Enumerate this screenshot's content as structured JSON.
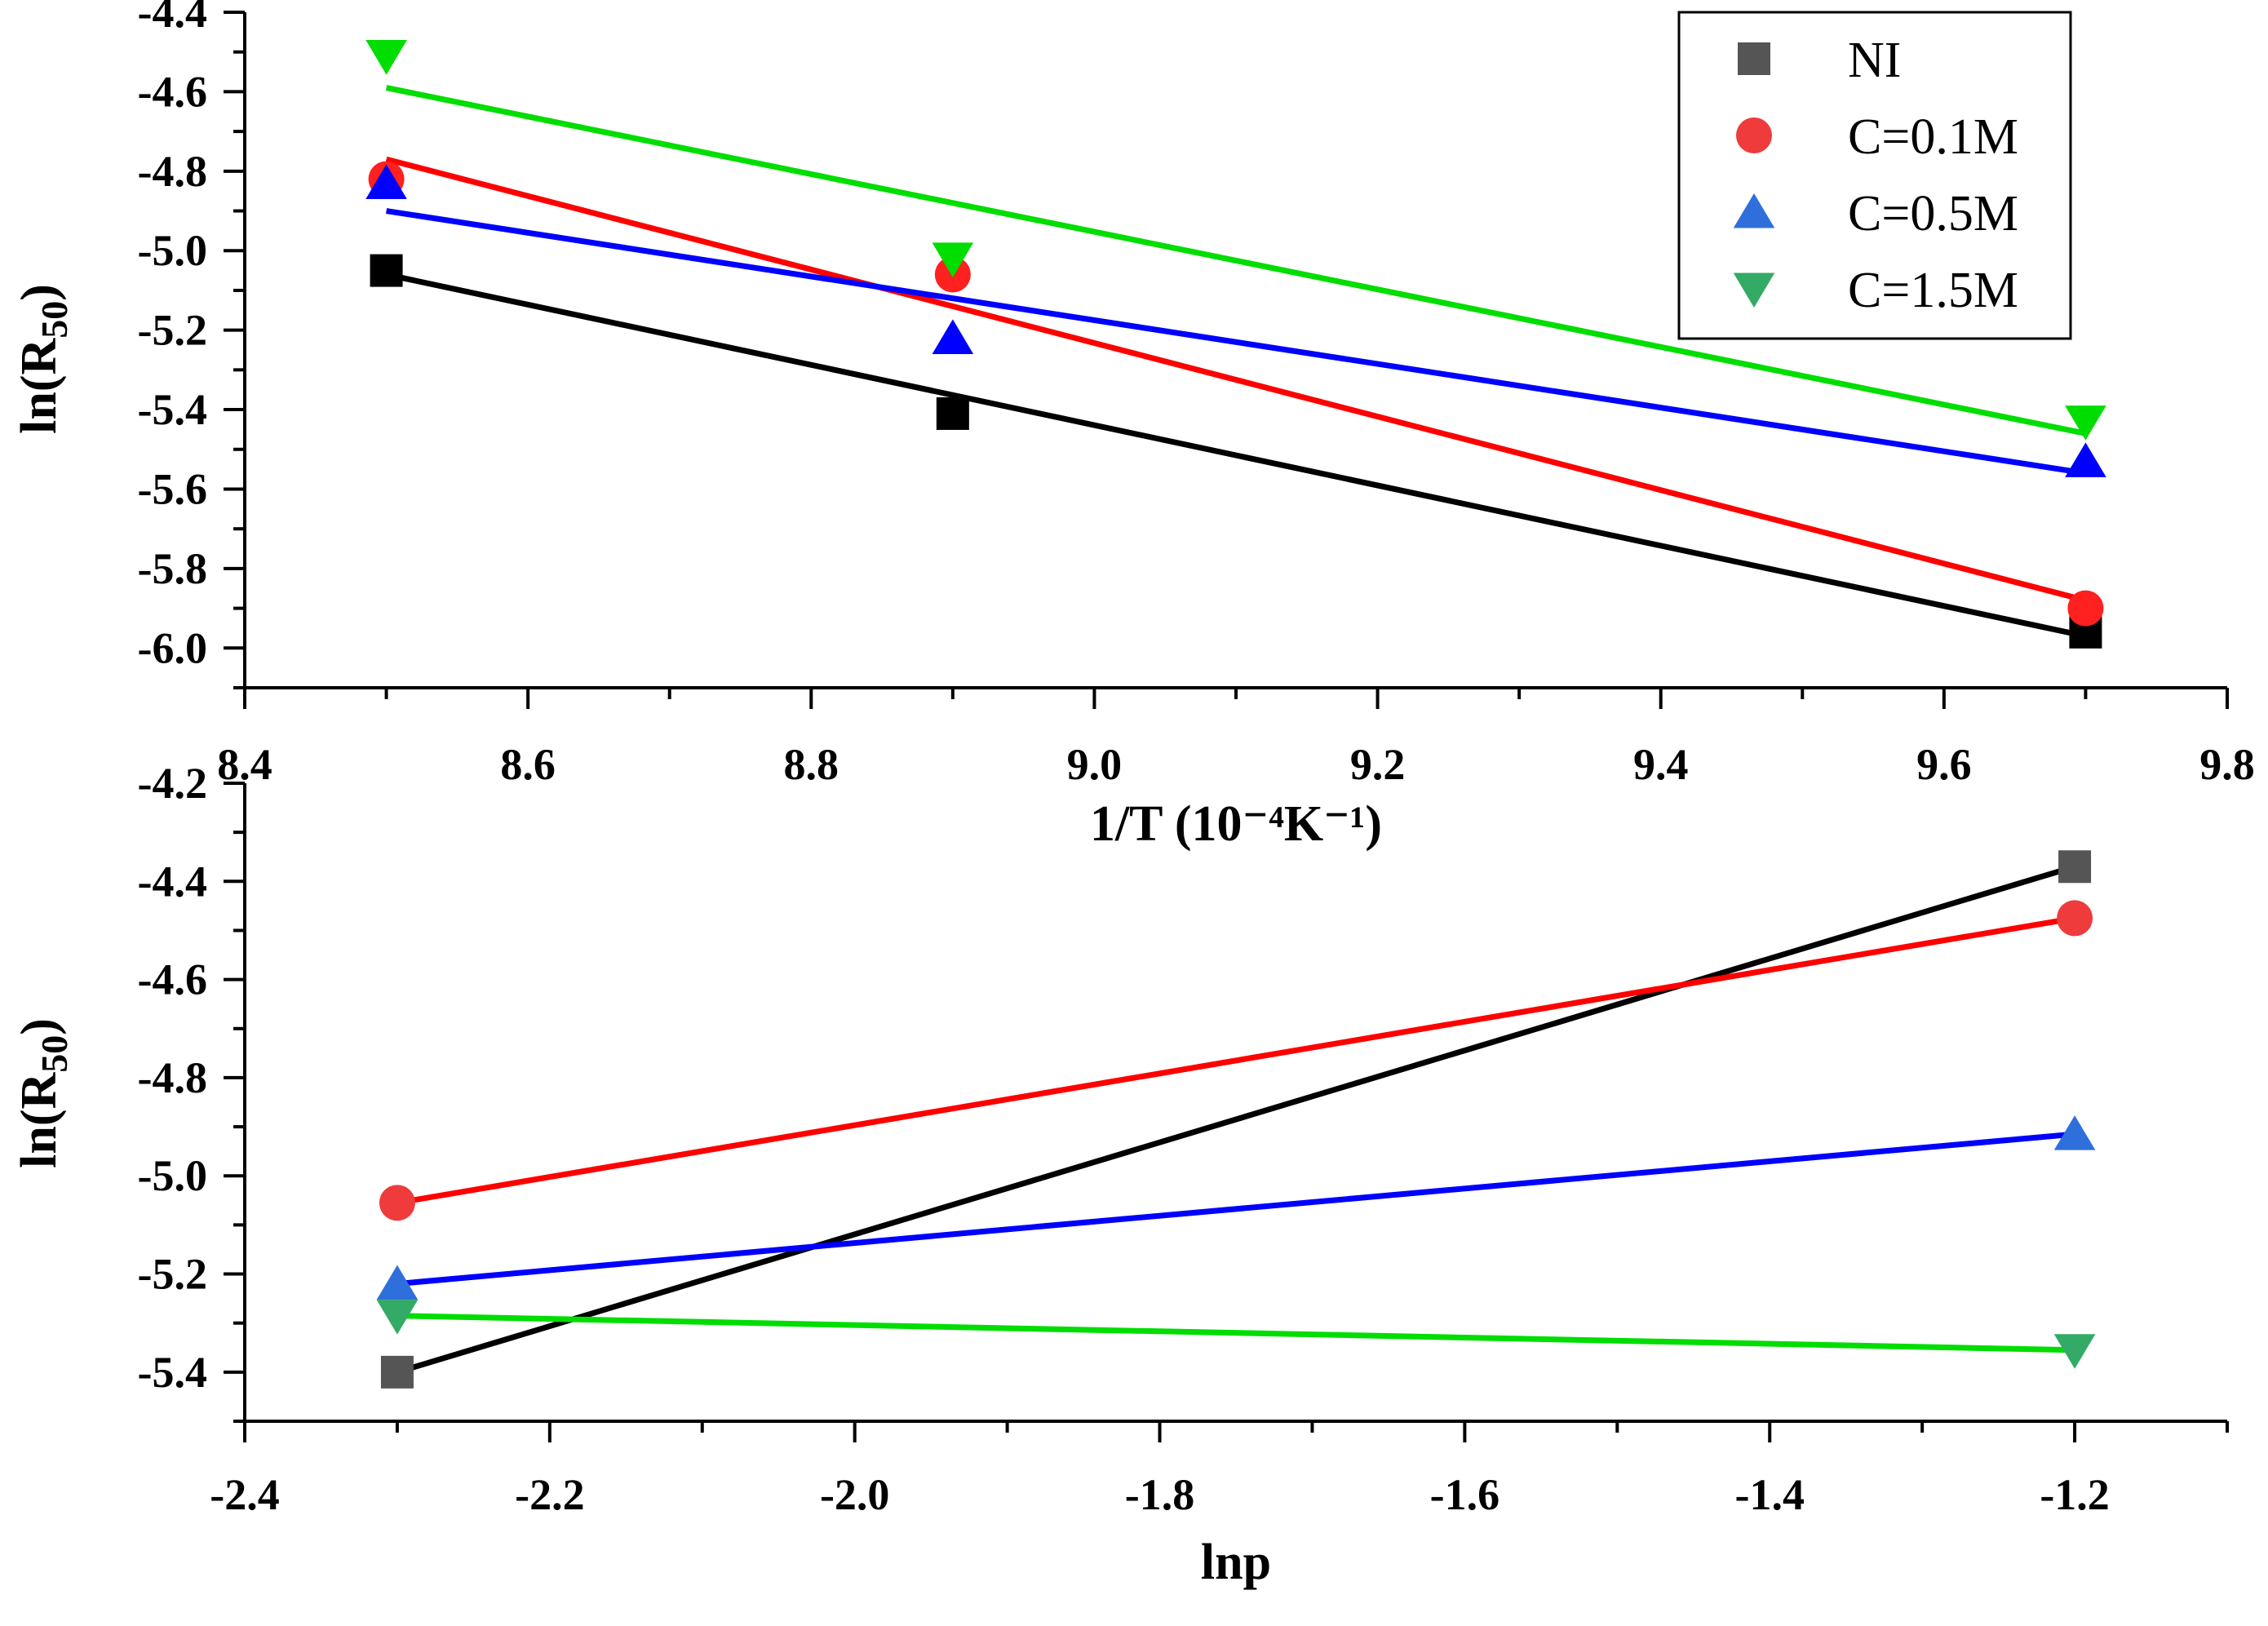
{
  "chart_data": [
    {
      "type": "scatter",
      "xlabel": "1/T (10⁻⁴K⁻¹)",
      "ylabel_main": "ln(R",
      "ylabel_sub": "50",
      "ylabel_close": ")",
      "xlim": [
        8.4,
        9.8
      ],
      "ylim": [
        -6.1,
        -4.4
      ],
      "x_ticks": [
        8.4,
        8.6,
        8.8,
        9.0,
        9.2,
        9.4,
        9.6,
        9.8
      ],
      "x_tick_labels": [
        "8.4",
        "8.6",
        "8.8",
        "9.0",
        "9.2",
        "9.4",
        "9.6",
        "9.8"
      ],
      "y_ticks": [
        -4.4,
        -4.6,
        -4.8,
        -5.0,
        -5.2,
        -5.4,
        -5.6,
        -5.8,
        -6.0
      ],
      "y_tick_labels": [
        "-4.4",
        "-4.6",
        "-4.8",
        "-5.0",
        "-5.2",
        "-5.4",
        "-5.6",
        "-5.8",
        "-6.0"
      ],
      "legend": {
        "position": "top-right",
        "entries": [
          {
            "label": "NI",
            "marker": "square",
            "color": "#555555"
          },
          {
            "label": "C=0.1M",
            "marker": "circle",
            "color": "#ef3b3b"
          },
          {
            "label": "C=0.5M",
            "marker": "triangle-up",
            "color": "#2f6fdc"
          },
          {
            "label": "C=1.5M",
            "marker": "triangle-down",
            "color": "#33aa66"
          }
        ]
      },
      "series": [
        {
          "name": "NI",
          "marker": "square",
          "marker_color": "#000000",
          "line_color": "#000000",
          "x": [
            8.5,
            8.9,
            9.7
          ],
          "y": [
            -5.05,
            -5.41,
            -5.96
          ],
          "fit": {
            "x": [
              8.5,
              9.7
            ],
            "y": [
              -5.06,
              -5.97
            ]
          }
        },
        {
          "name": "C=0.1M",
          "marker": "circle",
          "marker_color": "#ff2020",
          "line_color": "#ff0000",
          "x": [
            8.5,
            8.9,
            9.7
          ],
          "y": [
            -4.82,
            -5.06,
            -5.9
          ],
          "fit": {
            "x": [
              8.5,
              9.7
            ],
            "y": [
              -4.77,
              -5.88
            ]
          }
        },
        {
          "name": "C=0.5M",
          "marker": "triangle-up",
          "marker_color": "#0000ff",
          "line_color": "#0000ff",
          "x": [
            8.5,
            8.9,
            9.7
          ],
          "y": [
            -4.83,
            -5.22,
            -5.53
          ],
          "fit": {
            "x": [
              8.5,
              9.7
            ],
            "y": [
              -4.9,
              -5.56
            ]
          }
        },
        {
          "name": "C=1.5M",
          "marker": "triangle-down",
          "marker_color": "#00dd00",
          "line_color": "#00dd00",
          "x": [
            8.5,
            8.9,
            9.7
          ],
          "y": [
            -4.51,
            -5.02,
            -5.43
          ],
          "fit": {
            "x": [
              8.5,
              9.7
            ],
            "y": [
              -4.59,
              -5.46
            ]
          }
        }
      ]
    },
    {
      "type": "scatter",
      "xlabel": "lnp",
      "ylabel_main": "ln(R",
      "ylabel_sub": "50",
      "ylabel_close": ")",
      "xlim": [
        -2.4,
        -1.1
      ],
      "ylim": [
        -5.5,
        -4.2
      ],
      "x_ticks": [
        -2.4,
        -2.2,
        -2.0,
        -1.8,
        -1.6,
        -1.4,
        -1.2
      ],
      "x_tick_labels": [
        "-2.4",
        "-2.2",
        "-2.0",
        "-1.8",
        "-1.6",
        "-1.4",
        "-1.2"
      ],
      "y_ticks": [
        -4.2,
        -4.4,
        -4.6,
        -4.8,
        -5.0,
        -5.2,
        -5.4
      ],
      "y_tick_labels": [
        "-4.2",
        "-4.4",
        "-4.6",
        "-4.8",
        "-5.0",
        "-5.2",
        "-5.4"
      ],
      "series": [
        {
          "name": "NI",
          "marker": "square",
          "marker_color": "#555555",
          "line_color": "#000000",
          "x": [
            -2.3,
            -1.2
          ],
          "y": [
            -5.4,
            -4.37
          ],
          "fit": {
            "x": [
              -2.3,
              -1.2
            ],
            "y": [
              -5.4,
              -4.37
            ]
          }
        },
        {
          "name": "C=0.1M",
          "marker": "circle",
          "marker_color": "#ef3b3b",
          "line_color": "#ff0000",
          "x": [
            -2.3,
            -1.2
          ],
          "y": [
            -5.055,
            -4.475
          ],
          "fit": {
            "x": [
              -2.3,
              -1.2
            ],
            "y": [
              -5.055,
              -4.475
            ]
          }
        },
        {
          "name": "C=0.5M",
          "marker": "triangle-up",
          "marker_color": "#2f6fdc",
          "line_color": "#0000ff",
          "x": [
            -2.3,
            -1.2
          ],
          "y": [
            -5.22,
            -4.915
          ],
          "fit": {
            "x": [
              -2.3,
              -1.2
            ],
            "y": [
              -5.22,
              -4.915
            ]
          }
        },
        {
          "name": "C=1.5M",
          "marker": "triangle-down",
          "marker_color": "#33aa66",
          "line_color": "#00dd00",
          "x": [
            -2.3,
            -1.2
          ],
          "y": [
            -5.285,
            -5.355
          ],
          "fit": {
            "x": [
              -2.3,
              -1.2
            ],
            "y": [
              -5.285,
              -5.355
            ]
          }
        }
      ]
    }
  ]
}
